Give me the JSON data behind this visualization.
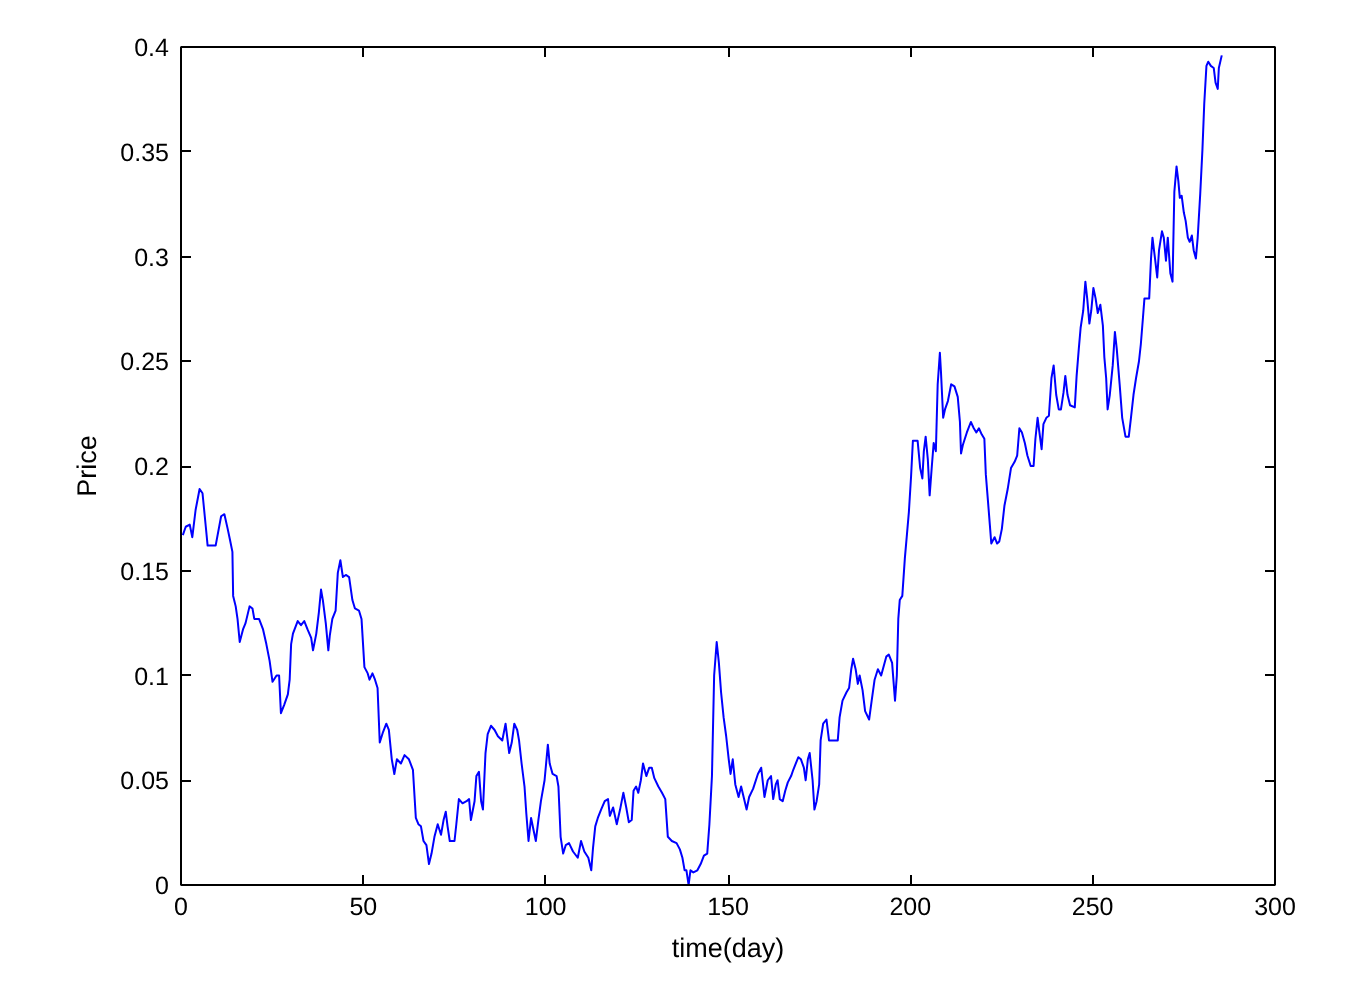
{
  "chart_data": {
    "type": "line",
    "xlabel": "time(day)",
    "ylabel": "Price",
    "x": [
      0.5,
      1.3,
      2.4,
      3.1,
      4.0,
      5.1,
      5.9,
      6.8,
      7.3,
      9.5,
      11.0,
      11.9,
      12.8,
      13.4,
      14.1,
      14.3,
      15.0,
      15.5,
      16.1,
      17.0,
      17.7,
      18.8,
      19.6,
      20.1,
      21.4,
      22.5,
      23.4,
      24.3,
      25.1,
      26.2,
      26.9,
      27.4,
      28.3,
      29.3,
      29.8,
      30.2,
      30.7,
      32.0,
      32.9,
      33.8,
      34.7,
      35.7,
      36.2,
      37.1,
      37.8,
      38.4,
      38.9,
      39.7,
      40.4,
      40.8,
      41.5,
      42.4,
      43.0,
      43.7,
      44.4,
      45.2,
      46.1,
      47.0,
      47.7,
      48.8,
      49.5,
      50.3,
      51.2,
      51.7,
      52.5,
      53.2,
      53.9,
      54.5,
      55.4,
      56.3,
      57.0,
      57.8,
      58.5,
      59.2,
      60.3,
      61.3,
      62.5,
      63.6,
      64.4,
      65.1,
      65.8,
      66.5,
      67.3,
      68.0,
      68.7,
      69.5,
      70.4,
      71.3,
      72.0,
      72.6,
      73.1,
      73.7,
      75.0,
      75.5,
      76.2,
      77.2,
      78.3,
      79.0,
      79.5,
      80.5,
      81.0,
      81.7,
      82.3,
      82.8,
      83.5,
      84.1,
      85.0,
      86.0,
      86.9,
      88.1,
      89.0,
      90.0,
      90.7,
      91.4,
      92.2,
      92.7,
      93.4,
      94.2,
      94.7,
      95.3,
      96.0,
      96.7,
      97.3,
      98.0,
      98.7,
      99.7,
      100.6,
      101.1,
      101.9,
      103.0,
      103.5,
      104.1,
      104.8,
      105.5,
      106.4,
      107.5,
      108.8,
      109.7,
      110.6,
      111.7,
      112.5,
      113.0,
      113.6,
      114.3,
      115.2,
      116.2,
      117.1,
      117.6,
      118.5,
      119.5,
      120.4,
      121.3,
      122.1,
      122.8,
      123.6,
      124.1,
      124.8,
      125.4,
      126.1,
      126.7,
      127.6,
      128.4,
      129.1,
      129.8,
      130.9,
      131.9,
      132.8,
      133.5,
      134.6,
      135.9,
      136.8,
      137.5,
      138.1,
      138.6,
      139.2,
      139.7,
      140.5,
      141.6,
      142.5,
      143.4,
      144.3,
      144.9,
      145.6,
      146.2,
      146.9,
      147.5,
      148.1,
      148.8,
      149.5,
      150.2,
      150.7,
      151.3,
      152.0,
      152.9,
      153.6,
      155.1,
      155.8,
      156.9,
      158.2,
      159.1,
      160.0,
      160.9,
      161.8,
      162.4,
      163.1,
      163.6,
      164.2,
      165.0,
      165.7,
      166.4,
      167.3,
      167.9,
      168.6,
      169.3,
      170.0,
      170.8,
      171.3,
      171.9,
      172.4,
      173.2,
      173.7,
      174.3,
      175.0,
      175.4,
      176.1,
      177.0,
      177.7,
      180.1,
      180.6,
      181.4,
      182.5,
      183.2,
      183.8,
      184.3,
      185.0,
      185.6,
      186.1,
      186.9,
      187.6,
      188.7,
      189.4,
      190.2,
      191.1,
      192.0,
      193.4,
      194.1,
      195.0,
      195.8,
      196.3,
      196.7,
      197.1,
      197.8,
      198.5,
      199.1,
      199.6,
      200.2,
      200.7,
      202.0,
      202.7,
      203.3,
      203.7,
      204.2,
      204.8,
      205.3,
      205.9,
      206.4,
      207.0,
      207.5,
      208.1,
      208.4,
      209.0,
      209.5,
      210.3,
      211.2,
      212.1,
      213.0,
      213.6,
      213.9,
      214.4,
      215.5,
      216.6,
      217.4,
      218.1,
      218.8,
      219.6,
      220.3,
      220.7,
      221.3,
      221.8,
      222.2,
      223.1,
      223.8,
      224.4,
      225.1,
      225.8,
      226.7,
      227.6,
      228.6,
      229.3,
      229.9,
      230.6,
      231.4,
      232.1,
      233.0,
      233.8,
      234.3,
      234.9,
      235.4,
      236.0,
      236.5,
      237.3,
      238.0,
      238.7,
      239.3,
      240.0,
      240.7,
      241.3,
      242.0,
      242.5,
      243.1,
      243.8,
      245.1,
      245.6,
      246.2,
      246.7,
      247.4,
      248.0,
      248.5,
      249.1,
      249.6,
      250.2,
      250.8,
      251.4,
      252.1,
      252.8,
      253.2,
      253.7,
      254.1,
      254.7,
      255.5,
      256.1,
      256.6,
      257.4,
      258.1,
      259.0,
      259.9,
      260.5,
      261.2,
      261.9,
      262.7,
      263.2,
      263.8,
      264.2,
      265.5,
      266.0,
      266.4,
      267.1,
      267.7,
      268.2,
      269.0,
      269.5,
      270.1,
      270.6,
      271.3,
      271.9,
      272.4,
      273.0,
      273.5,
      273.9,
      274.4,
      275.0,
      275.5,
      276.1,
      276.6,
      277.2,
      277.7,
      278.3,
      278.8,
      279.5,
      280.1,
      280.6,
      281.2,
      281.7,
      282.4,
      283.2,
      283.7,
      284.3,
      284.6,
      285.4
    ],
    "series": [
      {
        "color": "#0000ff",
        "values": [
          0.167,
          0.171,
          0.172,
          0.166,
          0.179,
          0.189,
          0.187,
          0.171,
          0.162,
          0.162,
          0.176,
          0.177,
          0.17,
          0.165,
          0.159,
          0.138,
          0.133,
          0.127,
          0.116,
          0.122,
          0.125,
          0.133,
          0.132,
          0.127,
          0.127,
          0.122,
          0.115,
          0.107,
          0.097,
          0.1,
          0.1,
          0.082,
          0.086,
          0.091,
          0.098,
          0.115,
          0.12,
          0.126,
          0.124,
          0.126,
          0.122,
          0.118,
          0.112,
          0.12,
          0.13,
          0.141,
          0.136,
          0.125,
          0.112,
          0.119,
          0.127,
          0.131,
          0.149,
          0.155,
          0.147,
          0.148,
          0.147,
          0.136,
          0.132,
          0.131,
          0.127,
          0.104,
          0.101,
          0.098,
          0.101,
          0.098,
          0.094,
          0.068,
          0.073,
          0.077,
          0.074,
          0.06,
          0.053,
          0.06,
          0.058,
          0.062,
          0.06,
          0.055,
          0.032,
          0.029,
          0.028,
          0.021,
          0.019,
          0.01,
          0.015,
          0.023,
          0.029,
          0.024,
          0.031,
          0.035,
          0.028,
          0.021,
          0.021,
          0.029,
          0.041,
          0.039,
          0.04,
          0.041,
          0.031,
          0.04,
          0.052,
          0.054,
          0.04,
          0.036,
          0.063,
          0.072,
          0.076,
          0.074,
          0.071,
          0.069,
          0.077,
          0.063,
          0.068,
          0.077,
          0.074,
          0.069,
          0.058,
          0.047,
          0.034,
          0.021,
          0.032,
          0.026,
          0.021,
          0.031,
          0.04,
          0.05,
          0.067,
          0.058,
          0.053,
          0.052,
          0.047,
          0.023,
          0.015,
          0.019,
          0.02,
          0.016,
          0.013,
          0.021,
          0.016,
          0.013,
          0.007,
          0.018,
          0.028,
          0.032,
          0.036,
          0.04,
          0.041,
          0.033,
          0.037,
          0.029,
          0.036,
          0.044,
          0.037,
          0.03,
          0.031,
          0.045,
          0.047,
          0.044,
          0.05,
          0.058,
          0.052,
          0.056,
          0.056,
          0.051,
          0.047,
          0.044,
          0.041,
          0.023,
          0.021,
          0.02,
          0.017,
          0.013,
          0.007,
          0.007,
          0.0,
          0.007,
          0.006,
          0.007,
          0.01,
          0.014,
          0.015,
          0.029,
          0.052,
          0.1,
          0.116,
          0.106,
          0.092,
          0.08,
          0.071,
          0.06,
          0.053,
          0.06,
          0.048,
          0.042,
          0.047,
          0.036,
          0.042,
          0.046,
          0.053,
          0.056,
          0.042,
          0.05,
          0.052,
          0.041,
          0.048,
          0.05,
          0.041,
          0.04,
          0.045,
          0.049,
          0.052,
          0.055,
          0.058,
          0.061,
          0.06,
          0.056,
          0.05,
          0.06,
          0.063,
          0.05,
          0.036,
          0.04,
          0.048,
          0.069,
          0.077,
          0.079,
          0.069,
          0.069,
          0.08,
          0.088,
          0.092,
          0.094,
          0.103,
          0.108,
          0.103,
          0.096,
          0.1,
          0.093,
          0.083,
          0.079,
          0.088,
          0.098,
          0.103,
          0.1,
          0.109,
          0.11,
          0.106,
          0.088,
          0.1,
          0.127,
          0.136,
          0.138,
          0.156,
          0.168,
          0.178,
          0.195,
          0.212,
          0.212,
          0.199,
          0.194,
          0.207,
          0.214,
          0.203,
          0.186,
          0.2,
          0.211,
          0.207,
          0.239,
          0.254,
          0.245,
          0.223,
          0.227,
          0.231,
          0.239,
          0.238,
          0.233,
          0.221,
          0.206,
          0.21,
          0.216,
          0.221,
          0.218,
          0.216,
          0.218,
          0.215,
          0.213,
          0.196,
          0.183,
          0.172,
          0.163,
          0.166,
          0.163,
          0.164,
          0.17,
          0.181,
          0.189,
          0.199,
          0.202,
          0.205,
          0.218,
          0.216,
          0.211,
          0.205,
          0.2,
          0.2,
          0.213,
          0.223,
          0.216,
          0.208,
          0.22,
          0.223,
          0.224,
          0.242,
          0.248,
          0.234,
          0.227,
          0.227,
          0.235,
          0.243,
          0.234,
          0.229,
          0.228,
          0.243,
          0.256,
          0.266,
          0.274,
          0.288,
          0.28,
          0.268,
          0.274,
          0.285,
          0.28,
          0.273,
          0.277,
          0.267,
          0.252,
          0.242,
          0.227,
          0.234,
          0.248,
          0.264,
          0.256,
          0.239,
          0.223,
          0.214,
          0.214,
          0.223,
          0.234,
          0.242,
          0.25,
          0.258,
          0.271,
          0.28,
          0.28,
          0.299,
          0.309,
          0.299,
          0.29,
          0.303,
          0.312,
          0.309,
          0.298,
          0.309,
          0.292,
          0.288,
          0.331,
          0.343,
          0.336,
          0.328,
          0.329,
          0.321,
          0.317,
          0.309,
          0.307,
          0.31,
          0.303,
          0.299,
          0.309,
          0.33,
          0.351,
          0.373,
          0.391,
          0.393,
          0.391,
          0.39,
          0.383,
          0.38,
          0.39,
          0.396
        ]
      }
    ],
    "xlim": [
      0,
      300
    ],
    "ylim": [
      0,
      0.4
    ],
    "xticks": [
      0,
      50,
      100,
      150,
      200,
      250,
      300
    ],
    "yticks": [
      0,
      0.05,
      0.1,
      0.15,
      0.2,
      0.25,
      0.3,
      0.35,
      0.4
    ],
    "grid": false,
    "line_style": "solid"
  }
}
